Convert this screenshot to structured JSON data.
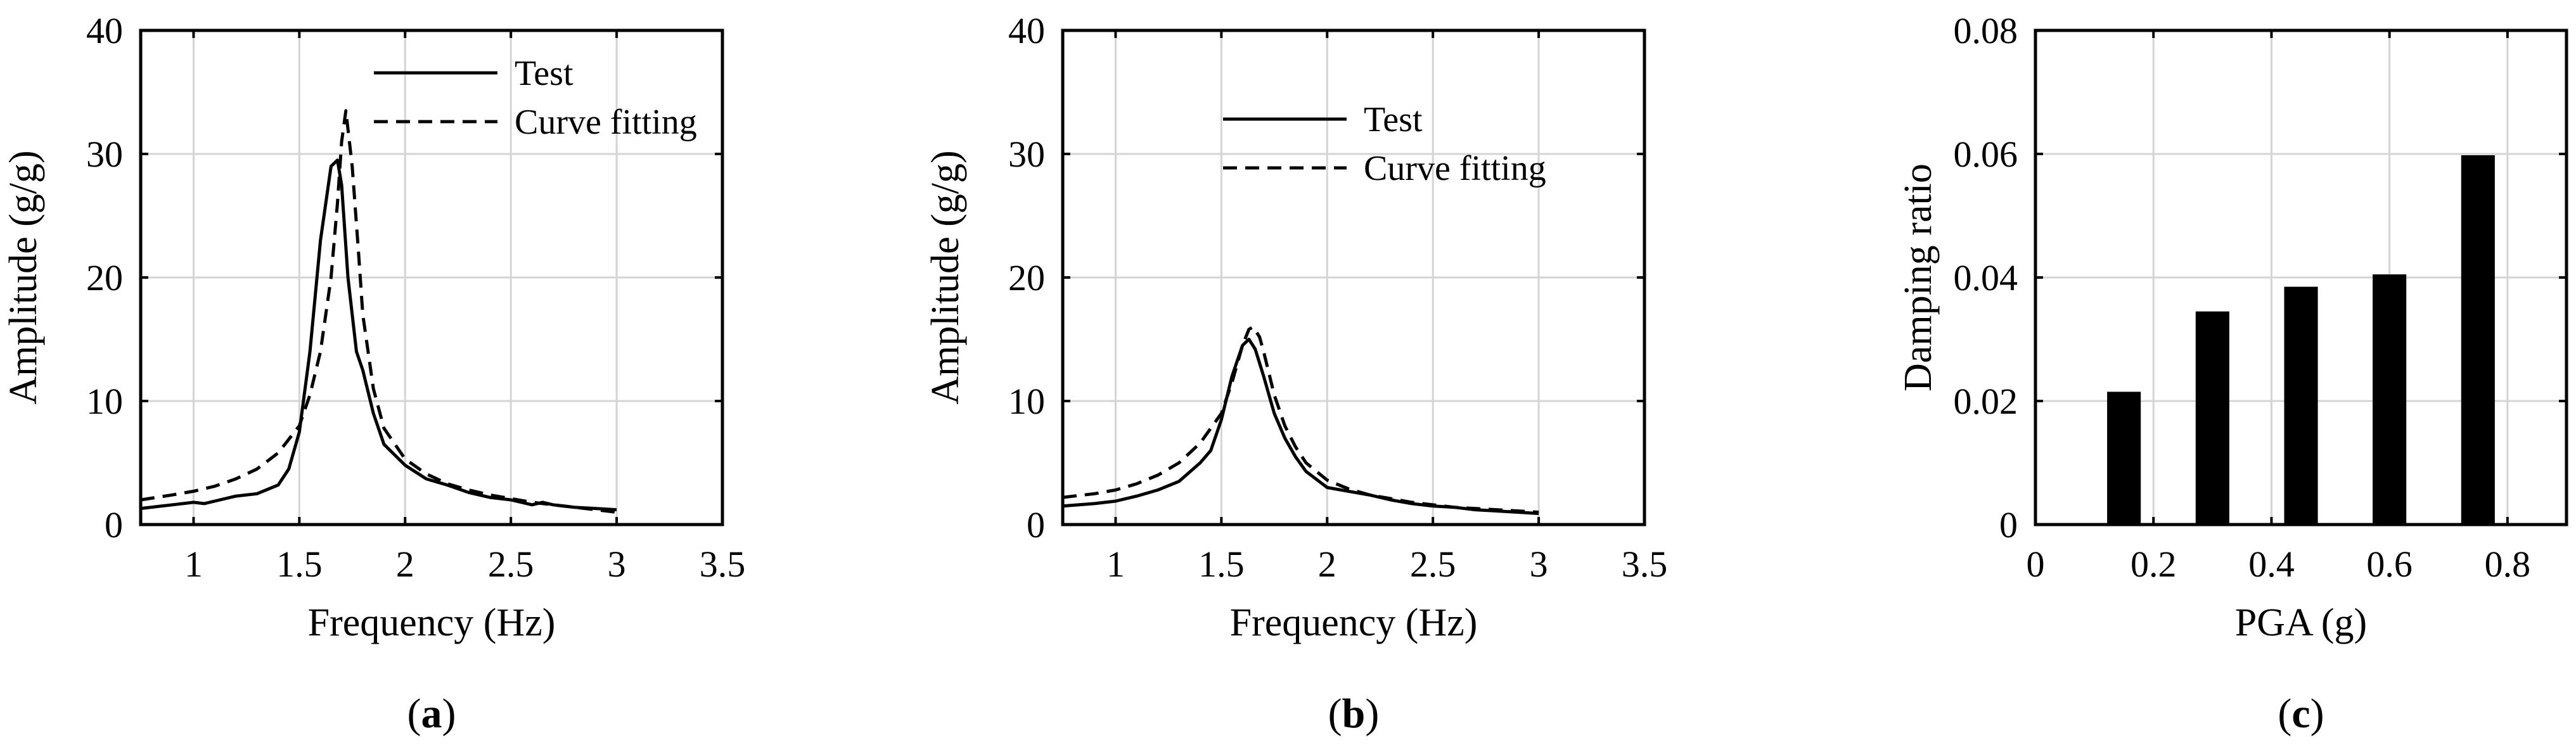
{
  "chart_data": [
    {
      "type": "line",
      "panel_label": "a",
      "xlabel": "Frequency (Hz)",
      "ylabel": "Amplitude (g/g)",
      "xlim": [
        0.75,
        3.5
      ],
      "ylim": [
        0,
        40
      ],
      "xticks": [
        1,
        1.5,
        2,
        2.5,
        3,
        3.5
      ],
      "xtick_labels": [
        "1",
        "1.5",
        "2",
        "2.5",
        "3",
        "3.5"
      ],
      "yticks": [
        0,
        10,
        20,
        30,
        40
      ],
      "ytick_labels": [
        "0",
        "10",
        "20",
        "30",
        "40"
      ],
      "grid": true,
      "legend_position": "top-right",
      "series": [
        {
          "name": "Test",
          "style": "solid",
          "x": [
            0.75,
            0.9,
            1.0,
            1.05,
            1.1,
            1.2,
            1.3,
            1.4,
            1.45,
            1.5,
            1.55,
            1.6,
            1.65,
            1.68,
            1.7,
            1.73,
            1.77,
            1.8,
            1.85,
            1.9,
            2.0,
            2.1,
            2.2,
            2.3,
            2.4,
            2.5,
            2.6,
            2.65,
            2.7,
            2.8,
            2.9,
            3.0
          ],
          "y": [
            1.3,
            1.6,
            1.8,
            1.7,
            1.9,
            2.3,
            2.5,
            3.2,
            4.5,
            7.5,
            14.0,
            23.0,
            29.0,
            29.5,
            27.5,
            20.0,
            14.0,
            12.5,
            9.0,
            6.5,
            4.8,
            3.7,
            3.2,
            2.6,
            2.2,
            2.0,
            1.6,
            1.8,
            1.6,
            1.4,
            1.3,
            1.2
          ]
        },
        {
          "name": "Curve fitting",
          "style": "dashed",
          "x": [
            0.75,
            0.9,
            1.0,
            1.1,
            1.2,
            1.3,
            1.4,
            1.5,
            1.55,
            1.6,
            1.65,
            1.68,
            1.7,
            1.72,
            1.75,
            1.78,
            1.8,
            1.85,
            1.9,
            2.0,
            2.1,
            2.2,
            2.3,
            2.4,
            2.5,
            2.6,
            2.7,
            2.8,
            2.9,
            3.0
          ],
          "y": [
            2.0,
            2.4,
            2.7,
            3.1,
            3.7,
            4.5,
            5.8,
            8.0,
            10.5,
            14.0,
            20.0,
            26.0,
            31.0,
            33.5,
            29.0,
            22.0,
            17.0,
            11.0,
            7.8,
            5.3,
            4.1,
            3.3,
            2.8,
            2.4,
            2.1,
            1.8,
            1.6,
            1.4,
            1.2,
            1.0
          ]
        }
      ]
    },
    {
      "type": "line",
      "panel_label": "b",
      "xlabel": "Frequency (Hz)",
      "ylabel": "Amplitude (g/g)",
      "xlim": [
        0.75,
        3.5
      ],
      "ylim": [
        0,
        40
      ],
      "xticks": [
        1,
        1.5,
        2,
        2.5,
        3,
        3.5
      ],
      "xtick_labels": [
        "1",
        "1.5",
        "2",
        "2.5",
        "3",
        "3.5"
      ],
      "yticks": [
        0,
        10,
        20,
        30,
        40
      ],
      "ytick_labels": [
        "0",
        "10",
        "20",
        "30",
        "40"
      ],
      "grid": true,
      "legend_position": "top-right",
      "series": [
        {
          "name": "Test",
          "style": "solid",
          "x": [
            0.75,
            0.9,
            1.0,
            1.1,
            1.2,
            1.3,
            1.4,
            1.45,
            1.5,
            1.55,
            1.6,
            1.63,
            1.66,
            1.7,
            1.75,
            1.8,
            1.85,
            1.9,
            2.0,
            2.1,
            2.2,
            2.3,
            2.4,
            2.5,
            2.6,
            2.7,
            2.8,
            2.9,
            3.0
          ],
          "y": [
            1.5,
            1.7,
            1.9,
            2.3,
            2.8,
            3.5,
            5.0,
            6.0,
            8.5,
            12.0,
            14.5,
            15.0,
            14.2,
            12.0,
            9.0,
            7.0,
            5.5,
            4.3,
            3.0,
            2.7,
            2.4,
            2.0,
            1.7,
            1.5,
            1.4,
            1.2,
            1.1,
            1.0,
            0.9
          ]
        },
        {
          "name": "Curve fitting",
          "style": "dashed",
          "x": [
            0.75,
            0.9,
            1.0,
            1.1,
            1.2,
            1.3,
            1.4,
            1.5,
            1.55,
            1.6,
            1.63,
            1.65,
            1.68,
            1.7,
            1.75,
            1.8,
            1.85,
            1.9,
            2.0,
            2.1,
            2.2,
            2.3,
            2.4,
            2.5,
            2.6,
            2.7,
            2.8,
            2.9,
            3.0
          ],
          "y": [
            2.2,
            2.5,
            2.8,
            3.3,
            4.0,
            5.0,
            6.6,
            9.0,
            11.5,
            14.5,
            15.8,
            16.0,
            15.2,
            14.0,
            10.5,
            8.0,
            6.3,
            5.0,
            3.6,
            2.9,
            2.4,
            2.1,
            1.8,
            1.6,
            1.4,
            1.3,
            1.2,
            1.1,
            1.0
          ]
        }
      ]
    },
    {
      "type": "bar",
      "panel_label": "c",
      "xlabel": "PGA (g)",
      "ylabel": "Damping ratio",
      "xlim": [
        0,
        0.9
      ],
      "ylim": [
        0,
        0.08
      ],
      "xticks": [
        0,
        0.2,
        0.4,
        0.6,
        0.8
      ],
      "xtick_labels": [
        "0",
        "0.2",
        "0.4",
        "0.6",
        "0.8"
      ],
      "yticks": [
        0,
        0.02,
        0.04,
        0.06,
        0.08
      ],
      "ytick_labels": [
        "0",
        "0.02",
        "0.04",
        "0.06",
        "0.08"
      ],
      "grid": true,
      "bar_width": 0.057,
      "x": [
        0.15,
        0.3,
        0.45,
        0.6,
        0.75
      ],
      "values": [
        0.0215,
        0.0345,
        0.0385,
        0.0405,
        0.0598
      ]
    }
  ]
}
